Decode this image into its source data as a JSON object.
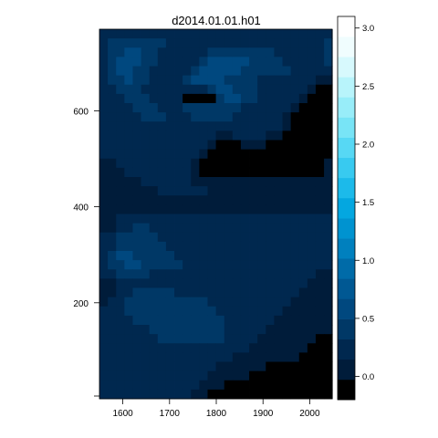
{
  "chart_data": {
    "type": "heatmap",
    "title": "d2014.01.01.h01",
    "xlabel": "",
    "ylabel": "",
    "xlim": [
      1550,
      2048
    ],
    "ylim": [
      0,
      770
    ],
    "x_ticks": [
      "1600",
      "1700",
      "1800",
      "1900",
      "2000"
    ],
    "y_ticks": [
      "200",
      "400",
      "600"
    ],
    "colorbar": {
      "range": [
        -0.2,
        3.1
      ],
      "step": 0.15,
      "tick_labels": [
        "0.0",
        "0.5",
        "1.0",
        "1.5",
        "2.0",
        "2.5",
        "3.0"
      ],
      "colors": [
        "#000000",
        "#001C3A",
        "#00284F",
        "#003866",
        "#00487F",
        "#005893",
        "#006BA8",
        "#0080BE",
        "#0093D0",
        "#04A7E0",
        "#1CBAEA",
        "#38CAF0",
        "#57D8F4",
        "#78E4F6",
        "#98EDF9",
        "#B8F4FB",
        "#D7F9FD",
        "#F0FDFE",
        "#FFFFFF"
      ]
    },
    "grid": {
      "ncols": 28,
      "nrows": 40,
      "cell_w": 17.8,
      "cell_h": 19.25,
      "note": "rows listed top (y=770) to bottom (y=0); values are color-level indices into colorbar.colors",
      "levels": [
        "2222222222222222222222222222",
        "2333333322222222222222222223",
        "2334433222222333333332222223",
        "2344433222223444443333222223",
        "2344332222234444433333322222",
        "2334332222344443333222222211",
        "2233322222222344333222222100",
        "2223332222000034433222221000",
        "2222333222333333322222210000",
        "2222233322233333222222100000",
        "2222222222222222222222100000",
        "2222222222222211222211000000",
        "2222222222222100011100000000",
        "2222222222221000000000000000",
        "1122222222210000000000000001",
        "1112222222210000000000000001",
        "1111122222211111111111111111",
        "1111111222222111111111111111",
        "1111111111111111111111111111",
        "1111111111111111111111111111",
        "1122222222222222222222222222",
        "1122332222222222222222222222",
        "2233333222222222222222222222",
        "2233333322222222222222222222",
        "2344333332222222222222222222",
        "2334433333222222222222222222",
        "2233332222222222222222222211",
        "1122222222222222222222222111",
        "1122333332222222222222221111",
        "1223333333333222222222211111",
        "2223333333333322222222111111",
        "2222333333333332222221111111",
        "2222223333333332222211111111",
        "2222222333333332222111111100",
        "2222222222222222221111111000",
        "2222222222222222111111110000",
        "2222222222222211111100000000",
        "2222222222222111110000000000",
        "2222222222221110000000000000",
        "2222222222211000000000000000"
      ]
    }
  }
}
